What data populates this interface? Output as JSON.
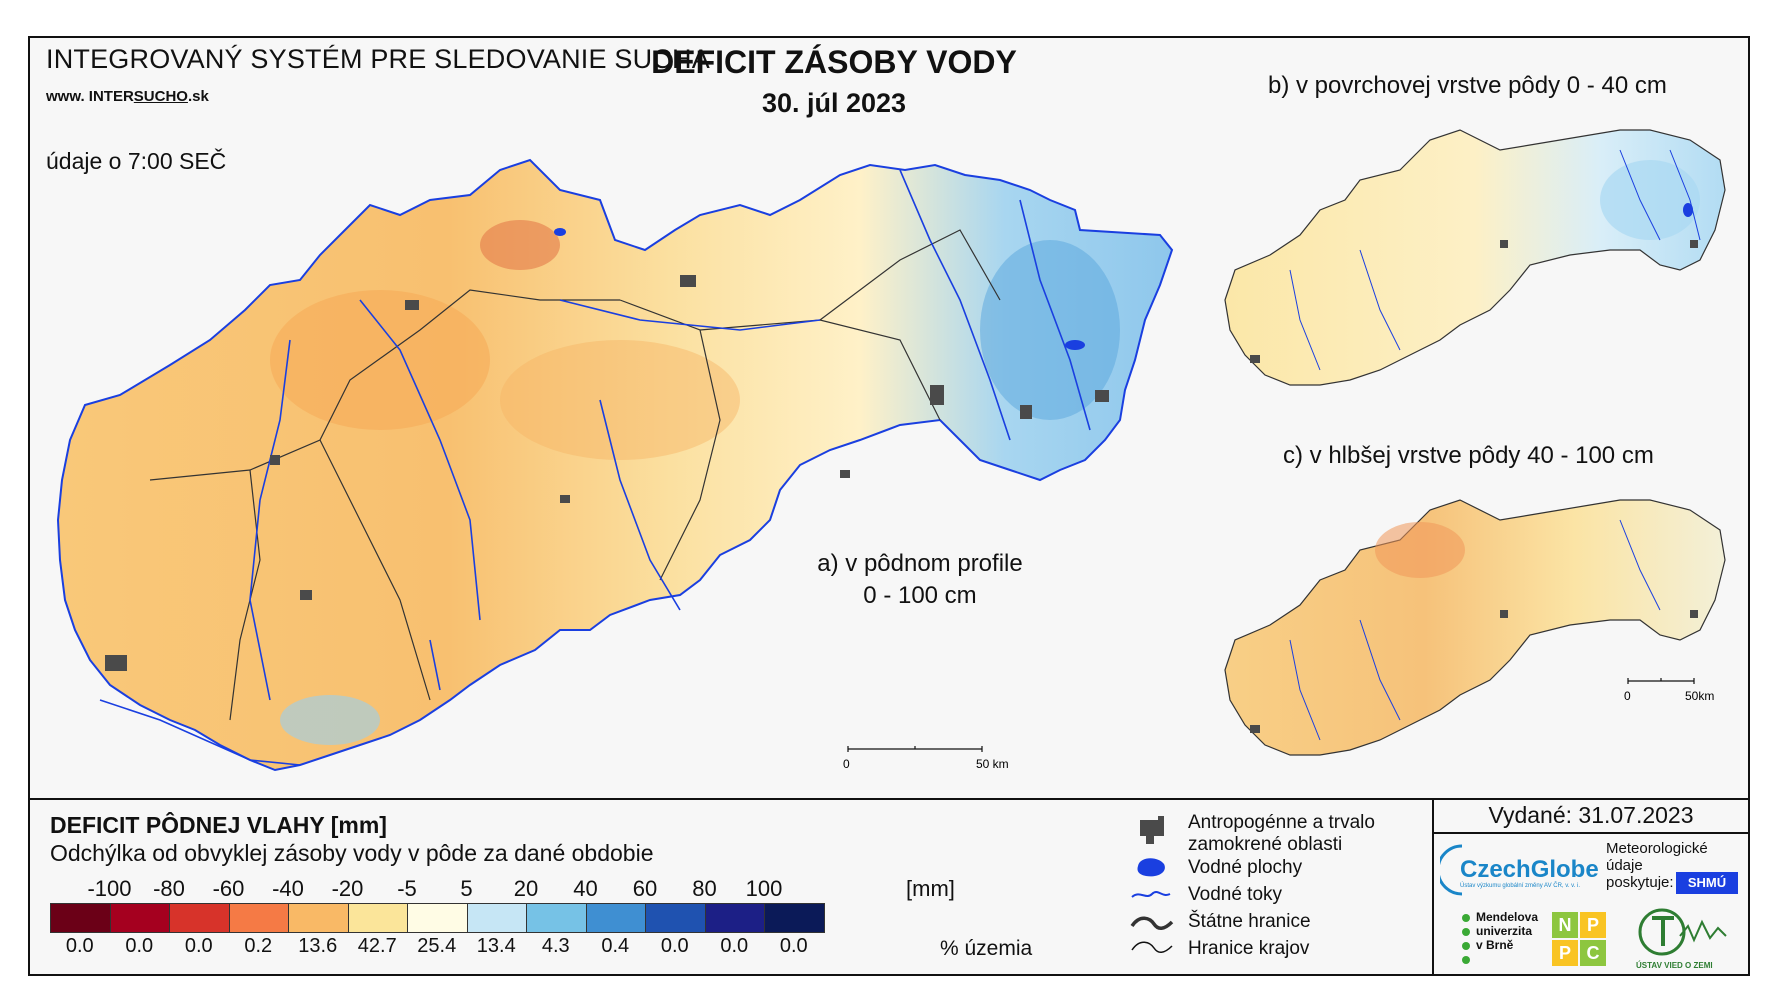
{
  "header": {
    "system_title": "INTEGROVANÝ SYSTÉM PRE SLEDOVANIE SUCHA",
    "site_prefix": "www. INTER",
    "site_underlined": "SUCHO",
    "site_suffix": ".sk",
    "time_note": "údaje o 7:00 SEČ",
    "main_title": "DEFICIT ZÁSOBY VODY",
    "date": "30. júl 2023"
  },
  "maps": {
    "a_label_line1": "a) v pôdnom profile",
    "a_label_line2": "0 - 100 cm",
    "b_label": "b) v povrchovej vrstve pôdy 0 - 40 cm",
    "c_label": "c) v hlbšej vrstve pôdy 40 - 100 cm",
    "scale_main_0": "0",
    "scale_main_50": "50 km",
    "scale_small_0": "0",
    "scale_small_50": "50km"
  },
  "legend": {
    "title": "DEFICIT PÔDNEJ VLAHY [mm]",
    "subtitle": "Odchýlka od obvyklej zásoby vody v pôde za dané obdobie",
    "unit": "[mm]",
    "pct_label": "% územia",
    "breaks": [
      "-100",
      "-80",
      "-60",
      "-40",
      "-20",
      "-5",
      "5",
      "20",
      "40",
      "60",
      "80",
      "100"
    ],
    "classes": [
      {
        "color": "#6b0017",
        "pct": "0.0"
      },
      {
        "color": "#a5001f",
        "pct": "0.0"
      },
      {
        "color": "#d7332a",
        "pct": "0.0"
      },
      {
        "color": "#f57a45",
        "pct": "0.2"
      },
      {
        "color": "#f9b966",
        "pct": "13.6"
      },
      {
        "color": "#fbe59a",
        "pct": "42.7"
      },
      {
        "color": "#fffce5",
        "pct": "25.4"
      },
      {
        "color": "#c6e6f5",
        "pct": "13.4"
      },
      {
        "color": "#76c2e6",
        "pct": "4.3"
      },
      {
        "color": "#3f8fd2",
        "pct": "0.4"
      },
      {
        "color": "#1f52b0",
        "pct": "0.0"
      },
      {
        "color": "#1c1f86",
        "pct": "0.0"
      },
      {
        "color": "#0b1a58",
        "pct": "0.0"
      }
    ]
  },
  "map_key": {
    "items": [
      {
        "icon": "urban-area-icon",
        "label_line1": "Antropogénne a trvalo",
        "label_line2": "zamokrené oblasti"
      },
      {
        "icon": "water-body-icon",
        "label_line1": "Vodné plochy",
        "label_line2": ""
      },
      {
        "icon": "river-icon",
        "label_line1": "Vodné toky",
        "label_line2": ""
      },
      {
        "icon": "state-border-icon",
        "label_line1": "Štátne hranice",
        "label_line2": ""
      },
      {
        "icon": "region-border-icon",
        "label_line1": "Hranice krajov",
        "label_line2": ""
      }
    ]
  },
  "footer": {
    "issued": "Vydané: 31.07.2023",
    "czechglobe": "CzechGlobe",
    "czechglobe_small": "Ústav výzkumu globální změny AV ČR, v. v. i.",
    "meteo_line1": "Meteorologické",
    "meteo_line2": "údaje",
    "meteo_line3": "poskytuje:",
    "shmu": "SHMÚ",
    "mendel_line1": "Mendelova",
    "mendel_line2": "univerzita",
    "mendel_line3": "v Brně",
    "nppc_n": "N",
    "nppc_p1": "P",
    "nppc_p2": "P",
    "nppc_c": "C",
    "uvz": "ÚSTAV VIED O ZEMI"
  },
  "colors": {
    "river": "#1a3fe0",
    "urban": "#4a4a4a",
    "border": "#333333",
    "czechglobe": "#1a86c8"
  }
}
